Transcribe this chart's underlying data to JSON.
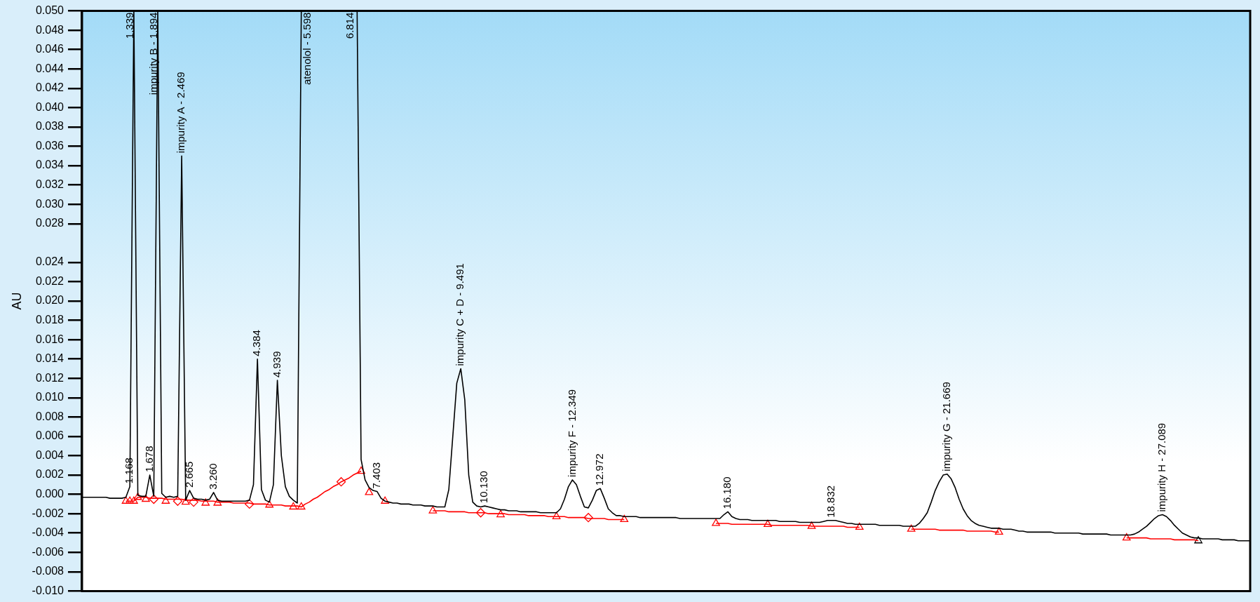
{
  "chart_data": {
    "type": "line",
    "ylabel": "AU",
    "ylim": [
      -0.01,
      0.05
    ],
    "tick_labels": "y",
    "yticks": [
      {
        "value": -0.01,
        "label": "-0.010"
      },
      {
        "value": -0.008,
        "label": "-0.008"
      },
      {
        "value": -0.006,
        "label": "-0.006"
      },
      {
        "value": -0.004,
        "label": "-0.004"
      },
      {
        "value": -0.002,
        "label": "-0.002"
      },
      {
        "value": 0,
        "label": "0.000"
      },
      {
        "value": 0.002,
        "label": "0.002"
      },
      {
        "value": 0.004,
        "label": "0.004"
      },
      {
        "value": 0.006,
        "label": "0.006"
      },
      {
        "value": 0.008,
        "label": "0.008"
      },
      {
        "value": 0.01,
        "label": "0.010"
      },
      {
        "value": 0.012,
        "label": "0.012"
      },
      {
        "value": 0.014,
        "label": "0.014"
      },
      {
        "value": 0.016,
        "label": "0.016"
      },
      {
        "value": 0.018,
        "label": "0.018"
      },
      {
        "value": 0.02,
        "label": "0.020"
      },
      {
        "value": 0.022,
        "label": "0.022"
      },
      {
        "value": 0.024,
        "label": "0.024"
      },
      {
        "value": 0.028,
        "label": "0.028"
      },
      {
        "value": 0.03,
        "label": "0.030"
      },
      {
        "value": 0.032,
        "label": "0.032"
      },
      {
        "value": 0.034,
        "label": "0.034"
      },
      {
        "value": 0.036,
        "label": "0.036"
      },
      {
        "value": 0.038,
        "label": "0.038"
      },
      {
        "value": 0.04,
        "label": "0.040"
      },
      {
        "value": 0.042,
        "label": "0.042"
      },
      {
        "value": 0.044,
        "label": "0.044"
      },
      {
        "value": 0.046,
        "label": "0.046"
      },
      {
        "value": 0.048,
        "label": "0.048"
      },
      {
        "value": 0.05,
        "label": "0.050"
      }
    ],
    "categories": [
      null,
      null,
      null,
      null,
      null,
      null,
      null,
      null,
      null,
      null,
      null,
      null,
      null,
      null,
      null,
      null,
      null,
      null,
      null,
      null,
      null,
      null,
      null,
      null,
      null,
      null,
      null,
      null,
      null,
      null,
      null,
      null,
      null,
      null,
      null,
      null,
      null,
      null,
      null,
      null,
      null,
      null,
      null,
      null,
      null,
      null,
      null,
      null,
      null,
      null,
      null,
      null,
      null,
      null,
      null,
      null,
      null,
      null,
      null,
      null,
      null,
      null,
      null,
      null,
      null,
      null,
      null,
      null,
      null,
      null,
      null,
      null,
      null,
      null,
      null,
      null,
      null,
      null,
      null,
      null,
      null,
      null,
      null,
      null,
      null,
      null,
      null,
      null,
      null,
      null,
      null,
      null,
      null,
      null,
      null,
      null,
      null,
      null,
      null,
      null,
      null,
      null,
      null,
      null,
      null,
      null,
      null,
      null,
      null,
      null,
      null,
      null,
      null,
      null,
      null,
      null,
      null,
      null,
      null,
      null,
      null,
      null,
      null,
      null,
      null,
      null,
      null,
      null,
      null,
      null,
      null,
      null,
      null,
      null,
      null,
      null,
      null,
      null,
      null,
      null,
      null,
      null,
      null,
      null,
      null,
      null,
      null,
      null,
      null,
      null,
      null,
      null,
      null,
      null,
      null,
      null,
      null,
      null,
      null,
      null,
      null,
      null,
      null,
      null,
      null,
      null,
      null,
      null,
      null,
      null,
      null,
      null,
      null,
      null,
      null,
      null,
      null,
      null,
      null,
      null,
      null,
      null,
      null,
      null,
      null,
      null,
      null,
      null,
      null,
      null,
      null,
      null,
      null,
      null,
      null,
      null,
      null,
      null,
      null,
      null,
      null,
      null,
      null,
      null,
      null,
      null,
      null,
      null,
      null,
      null,
      null,
      null,
      null,
      null,
      null,
      null,
      null,
      null,
      null,
      null,
      null,
      null,
      null,
      null,
      null,
      null,
      null,
      null,
      null,
      null,
      null,
      null,
      null,
      null,
      null,
      null,
      null,
      null,
      null,
      null,
      null,
      null,
      null,
      null,
      null,
      null,
      null,
      null,
      null,
      null,
      null,
      null,
      null,
      null,
      null,
      null,
      null,
      null,
      null,
      null,
      null,
      null,
      null,
      null,
      null,
      null,
      null,
      null,
      null,
      null,
      null,
      null,
      null,
      null,
      null,
      null,
      null,
      null,
      null,
      null,
      null,
      null,
      null,
      null,
      null,
      null,
      null,
      null,
      null,
      null,
      null,
      null,
      null,
      null
    ],
    "series": [
      {
        "type": "line",
        "color": "#000000",
        "marker": "none",
        "values": [
          -0.0003,
          -0.0003,
          -0.0003,
          -0.0003,
          -0.0003,
          -0.0003,
          -0.0003,
          -0.0004,
          -0.0004,
          -0.0004,
          -0.0004,
          -0.0003,
          0.0008,
          0.05,
          -0.0001,
          -0.0002,
          -0.0002,
          0.002,
          -0.0002,
          0.05,
          0.0001,
          -0.0003,
          -0.0002,
          -0.0003,
          -0.0002,
          0.035,
          -0.0006,
          0.0004,
          -0.0004,
          -0.0005,
          -0.0005,
          -0.0006,
          -0.0005,
          0.0002,
          -0.0006,
          -0.0007,
          -0.0007,
          -0.0007,
          -0.0007,
          -0.0007,
          -0.0007,
          -0.0007,
          -0.0006,
          0.001,
          0.014,
          0.0005,
          -0.0006,
          -0.0008,
          0.001,
          0.0118,
          0.004,
          0.0008,
          -0.0002,
          -0.0006,
          -0.0009,
          0.05,
          0.05,
          0.05,
          0.05,
          0.05,
          0.05,
          0.05,
          0.05,
          0.05,
          0.05,
          0.05,
          0.05,
          0.05,
          0.05,
          0.05,
          0.0036,
          0.0015,
          0.0007,
          0.0004,
          0.0003,
          -0.0004,
          -0.0007,
          -0.0008,
          -0.0009,
          -0.0009,
          -0.001,
          -0.001,
          -0.001,
          -0.0011,
          -0.0011,
          -0.0011,
          -0.0012,
          -0.0012,
          -0.0012,
          -0.0013,
          -0.0013,
          -0.0013,
          0.0005,
          0.006,
          0.0115,
          0.013,
          0.0098,
          0.002,
          -0.0008,
          -0.0012,
          -0.0013,
          -0.0012,
          -0.0013,
          -0.0014,
          -0.0015,
          -0.0016,
          -0.0016,
          -0.0017,
          -0.0017,
          -0.0017,
          -0.0018,
          -0.0018,
          -0.0018,
          -0.0018,
          -0.0018,
          -0.0019,
          -0.0019,
          -0.0019,
          -0.0019,
          -0.0019,
          -0.0015,
          -0.0005,
          0.0008,
          0.0015,
          0.001,
          -0.0002,
          -0.0013,
          -0.0014,
          -0.0006,
          0.0004,
          0.0006,
          -0.0004,
          -0.0015,
          -0.0019,
          -0.0022,
          -0.0022,
          -0.0023,
          -0.0023,
          -0.0023,
          -0.0023,
          -0.0024,
          -0.0024,
          -0.0024,
          -0.0024,
          -0.0024,
          -0.0024,
          -0.0024,
          -0.0024,
          -0.0024,
          -0.0024,
          -0.0025,
          -0.0025,
          -0.0025,
          -0.0025,
          -0.0025,
          -0.0025,
          -0.0025,
          -0.0025,
          -0.0025,
          -0.0025,
          -0.0025,
          -0.0021,
          -0.0018,
          -0.0023,
          -0.0025,
          -0.0026,
          -0.0026,
          -0.0026,
          -0.0027,
          -0.0027,
          -0.0027,
          -0.0027,
          -0.0027,
          -0.0027,
          -0.0027,
          -0.0028,
          -0.0028,
          -0.0028,
          -0.0028,
          -0.0028,
          -0.0029,
          -0.0029,
          -0.0029,
          -0.0029,
          -0.0029,
          -0.0029,
          -0.0028,
          -0.0027,
          -0.0027,
          -0.0027,
          -0.0028,
          -0.0029,
          -0.003,
          -0.003,
          -0.0031,
          -0.0031,
          -0.0031,
          -0.0031,
          -0.0031,
          -0.0031,
          -0.0032,
          -0.0032,
          -0.0032,
          -0.0032,
          -0.0032,
          -0.0032,
          -0.0033,
          -0.0033,
          -0.0033,
          -0.0033,
          -0.003,
          -0.0025,
          -0.0019,
          -0.0008,
          0.0004,
          0.0013,
          0.002,
          0.0021,
          0.0016,
          0.0007,
          -0.0005,
          -0.0015,
          -0.0022,
          -0.0027,
          -0.003,
          -0.0032,
          -0.0033,
          -0.0034,
          -0.0035,
          -0.0035,
          -0.0035,
          -0.0036,
          -0.0036,
          -0.0036,
          -0.0037,
          -0.0038,
          -0.0038,
          -0.0039,
          -0.0039,
          -0.0039,
          -0.0039,
          -0.0039,
          -0.0039,
          -0.0039,
          -0.004,
          -0.004,
          -0.004,
          -0.004,
          -0.004,
          -0.004,
          -0.004,
          -0.0041,
          -0.0041,
          -0.0041,
          -0.0041,
          -0.0041,
          -0.0041,
          -0.0041,
          -0.0042,
          -0.0042,
          -0.0042,
          -0.0042,
          -0.0042,
          -0.0042,
          -0.0041,
          -0.0039,
          -0.0036,
          -0.0033,
          -0.0029,
          -0.0025,
          -0.0022,
          -0.0021,
          -0.0023,
          -0.0027,
          -0.0032,
          -0.0036,
          -0.004,
          -0.0042,
          -0.0044,
          -0.0045,
          -0.0045,
          -0.0046,
          -0.0046,
          -0.0046,
          -0.0046,
          -0.0046,
          -0.0047,
          -0.0047,
          -0.0047,
          -0.0047,
          -0.0048,
          -0.0048,
          -0.0048,
          -0.0048
        ],
        "line_style": "solid"
      },
      {
        "type": "line",
        "color": "#ff0000",
        "marker": "none",
        "values": [
          null,
          null,
          null,
          null,
          null,
          null,
          null,
          null,
          null,
          null,
          null,
          -0.0007,
          -0.0007,
          -0.0007,
          -0.0003,
          -0.0003,
          -0.0003,
          -0.0004,
          -0.0004,
          -0.0004,
          -0.0004,
          -0.0005,
          -0.0005,
          -0.0005,
          -0.0005,
          -0.0005,
          -0.0006,
          -0.0006,
          -0.0006,
          -0.0006,
          -0.0007,
          -0.0007,
          -0.0007,
          -0.0007,
          -0.0008,
          -0.0008,
          -0.0008,
          -0.0008,
          -0.0009,
          -0.0009,
          -0.0009,
          -0.0009,
          -0.0009,
          -0.001,
          -0.001,
          -0.001,
          -0.001,
          -0.0011,
          -0.0011,
          -0.0011,
          -0.0011,
          -0.0012,
          -0.0012,
          -0.0012,
          -0.0012,
          -0.0013,
          -0.001,
          -0.0008,
          -0.0005,
          -0.0003,
          0,
          0.0003,
          0.0005,
          0.0008,
          0.001,
          0.0013,
          0.0015,
          0.0017,
          0.002,
          0.0022,
          0.0024,
          null,
          null,
          null,
          null,
          null,
          null,
          null,
          null,
          null,
          null,
          null,
          null,
          null,
          null,
          null,
          null,
          null,
          -0.0017,
          -0.0017,
          -0.0017,
          -0.0017,
          -0.0018,
          -0.0018,
          -0.0018,
          -0.0018,
          -0.0018,
          -0.0019,
          -0.0019,
          -0.0019,
          -0.0019,
          -0.0019,
          -0.002,
          -0.002,
          -0.002,
          -0.002,
          -0.002,
          -0.0021,
          -0.0021,
          -0.0021,
          -0.0021,
          -0.0021,
          -0.0022,
          -0.0022,
          -0.0022,
          -0.0022,
          -0.0022,
          -0.0023,
          -0.0023,
          -0.0023,
          -0.0023,
          -0.0023,
          -0.0024,
          -0.0024,
          -0.0024,
          -0.0024,
          -0.0024,
          -0.0025,
          -0.0025,
          -0.0025,
          -0.0025,
          -0.0025,
          -0.0026,
          -0.0026,
          -0.0026,
          -0.0026,
          -0.0026,
          null,
          null,
          null,
          null,
          null,
          null,
          null,
          null,
          null,
          null,
          null,
          null,
          null,
          null,
          null,
          null,
          null,
          null,
          null,
          null,
          null,
          null,
          -0.003,
          -0.003,
          -0.003,
          -0.003,
          -0.0031,
          -0.0031,
          -0.0031,
          -0.0031,
          -0.0031,
          -0.0031,
          -0.0031,
          -0.0031,
          -0.0031,
          -0.0031,
          -0.0032,
          -0.0032,
          -0.0032,
          -0.0032,
          -0.0032,
          -0.0032,
          -0.0032,
          -0.0032,
          -0.0032,
          -0.0032,
          -0.0033,
          -0.0033,
          -0.0033,
          -0.0033,
          -0.0033,
          -0.0033,
          -0.0033,
          -0.0033,
          -0.0033,
          -0.0034,
          -0.0034,
          -0.0034,
          -0.0034,
          null,
          null,
          null,
          null,
          null,
          null,
          null,
          null,
          null,
          null,
          null,
          null,
          -0.0036,
          -0.0036,
          -0.0036,
          -0.0036,
          -0.0036,
          -0.0036,
          -0.0036,
          -0.0037,
          -0.0037,
          -0.0037,
          -0.0037,
          -0.0037,
          -0.0037,
          -0.0037,
          -0.0038,
          -0.0038,
          -0.0038,
          -0.0038,
          -0.0038,
          -0.0038,
          -0.0038,
          -0.0039,
          -0.0039,
          null,
          null,
          null,
          null,
          null,
          null,
          null,
          null,
          null,
          null,
          null,
          null,
          null,
          null,
          null,
          null,
          null,
          null,
          null,
          null,
          null,
          null,
          null,
          null,
          null,
          null,
          null,
          null,
          null,
          null,
          null,
          -0.0045,
          -0.0045,
          -0.0045,
          -0.0045,
          -0.0045,
          -0.0045,
          -0.0046,
          -0.0046,
          -0.0046,
          -0.0046,
          -0.0046,
          -0.0046,
          -0.0047,
          -0.0047,
          -0.0047,
          -0.0047,
          -0.0047,
          -0.0047,
          -0.0048,
          null,
          null,
          null,
          null,
          null,
          null,
          null,
          null,
          null,
          null,
          null,
          null,
          null
        ]
      },
      {
        "type": "scatter",
        "color": "#ff0000",
        "marker": "triangle",
        "values": [
          null,
          null,
          null,
          null,
          null,
          null,
          null,
          null,
          null,
          null,
          null,
          -0.0007,
          -0.0007,
          -0.0007,
          -0.0003,
          null,
          -0.0005,
          null,
          null,
          null,
          null,
          -0.0007,
          null,
          null,
          null,
          null,
          -0.0008,
          null,
          null,
          null,
          null,
          -0.0009,
          null,
          null,
          -0.0009,
          null,
          null,
          null,
          null,
          null,
          null,
          null,
          null,
          null,
          null,
          null,
          null,
          -0.0011,
          null,
          null,
          null,
          null,
          null,
          -0.0013,
          null,
          -0.0013,
          null,
          null,
          null,
          null,
          null,
          null,
          null,
          null,
          null,
          null,
          null,
          null,
          null,
          null,
          0.0024,
          null,
          0.0002,
          null,
          null,
          null,
          -0.0007,
          null,
          null,
          null,
          null,
          null,
          null,
          null,
          null,
          null,
          null,
          null,
          -0.0017,
          null,
          null,
          null,
          null,
          null,
          null,
          null,
          null,
          null,
          null,
          null,
          null,
          null,
          null,
          null,
          null,
          -0.0021,
          null,
          null,
          null,
          null,
          null,
          null,
          null,
          null,
          null,
          null,
          null,
          null,
          null,
          -0.0023,
          null,
          null,
          null,
          null,
          null,
          null,
          null,
          null,
          null,
          null,
          null,
          null,
          null,
          null,
          null,
          null,
          -0.0026,
          null,
          null,
          null,
          null,
          null,
          null,
          null,
          null,
          null,
          null,
          null,
          null,
          null,
          null,
          null,
          null,
          null,
          null,
          null,
          null,
          null,
          null,
          -0.003,
          null,
          null,
          null,
          null,
          null,
          null,
          null,
          null,
          null,
          null,
          null,
          null,
          -0.0031,
          null,
          null,
          null,
          null,
          null,
          null,
          null,
          null,
          null,
          null,
          -0.0033,
          null,
          null,
          null,
          null,
          null,
          null,
          null,
          null,
          null,
          null,
          null,
          -0.0034,
          null,
          null,
          null,
          null,
          null,
          null,
          null,
          null,
          null,
          null,
          null,
          null,
          -0.0036,
          null,
          null,
          null,
          null,
          null,
          null,
          null,
          null,
          null,
          null,
          null,
          null,
          null,
          null,
          null,
          null,
          null,
          null,
          null,
          null,
          null,
          -0.0039,
          null,
          null,
          null,
          null,
          null,
          null,
          null,
          null,
          null,
          null,
          null,
          null,
          null,
          null,
          null,
          null,
          null,
          null,
          null,
          null,
          null,
          null,
          null,
          null,
          null,
          null,
          null,
          null,
          null,
          null,
          null,
          -0.0045,
          null,
          null,
          null,
          null,
          null,
          null,
          null,
          null,
          null,
          null,
          null,
          null,
          null,
          null,
          null,
          null,
          null,
          null,
          null,
          null,
          null,
          null,
          null,
          null,
          null,
          null,
          null,
          null,
          null,
          null,
          null
        ]
      },
      {
        "type": "scatter",
        "color": "#ff0000",
        "marker": "diamond",
        "values": [
          null,
          null,
          null,
          null,
          null,
          null,
          null,
          null,
          null,
          null,
          null,
          null,
          null,
          null,
          null,
          null,
          null,
          null,
          -0.0005,
          null,
          null,
          null,
          null,
          null,
          -0.0007,
          null,
          null,
          null,
          -0.0008,
          null,
          null,
          null,
          null,
          null,
          null,
          null,
          null,
          null,
          null,
          null,
          null,
          null,
          -0.001,
          null,
          null,
          null,
          null,
          null,
          null,
          null,
          null,
          null,
          null,
          null,
          null,
          null,
          null,
          null,
          null,
          null,
          null,
          null,
          null,
          null,
          null,
          0.0013,
          null,
          null,
          null,
          null,
          null,
          null,
          null,
          null,
          null,
          null,
          null,
          null,
          null,
          null,
          null,
          null,
          null,
          null,
          null,
          null,
          null,
          null,
          null,
          null,
          null,
          null,
          null,
          null,
          null,
          null,
          null,
          null,
          null,
          null,
          -0.0019,
          null,
          null,
          null,
          null,
          null,
          null,
          null,
          null,
          null,
          null,
          null,
          null,
          null,
          null,
          null,
          null,
          null,
          null,
          null,
          null,
          null,
          null,
          null,
          null,
          null,
          null,
          -0.0024,
          null,
          null,
          null,
          null,
          null,
          null,
          null,
          null,
          null,
          null,
          null,
          null,
          null,
          null,
          null,
          null,
          null,
          null,
          null,
          null,
          null,
          null,
          null,
          null,
          null,
          null,
          null,
          null,
          null,
          null,
          null,
          null,
          null,
          null,
          null,
          null,
          null,
          null,
          null,
          null,
          null,
          null,
          null,
          null,
          null,
          null,
          null,
          null,
          null,
          null,
          null,
          null,
          null,
          null,
          null,
          null,
          null,
          null,
          null,
          null,
          null,
          null,
          null,
          null,
          null,
          null,
          null,
          null,
          null,
          null,
          null,
          null,
          null,
          null,
          null,
          null,
          null,
          null,
          null,
          null,
          null,
          null,
          null,
          null,
          null,
          null,
          null,
          null,
          null,
          null,
          null,
          null,
          null,
          null,
          null,
          null,
          null,
          null,
          null,
          null,
          null,
          null,
          null,
          null,
          null,
          null,
          null,
          null,
          null,
          null,
          null,
          null,
          null,
          null,
          null,
          null,
          null,
          null,
          null,
          null,
          null,
          null,
          null,
          null,
          null,
          null,
          null,
          null,
          null,
          null,
          null,
          null,
          null,
          null,
          null,
          null,
          null,
          null,
          null,
          null,
          null,
          null,
          null,
          null,
          null,
          null,
          null,
          null,
          null,
          null,
          null,
          null,
          null,
          null,
          null,
          null,
          null,
          null,
          null,
          null,
          null,
          null,
          null,
          null,
          null,
          null
        ]
      },
      {
        "type": "scatter",
        "color": "#000000",
        "marker": "triangle",
        "values": [
          null,
          null,
          null,
          null,
          null,
          null,
          null,
          null,
          null,
          null,
          null,
          null,
          null,
          null,
          null,
          null,
          null,
          null,
          null,
          null,
          null,
          null,
          null,
          null,
          null,
          null,
          null,
          null,
          null,
          null,
          null,
          null,
          null,
          null,
          null,
          null,
          null,
          null,
          null,
          null,
          null,
          null,
          null,
          null,
          null,
          null,
          null,
          null,
          null,
          null,
          null,
          null,
          null,
          null,
          null,
          null,
          null,
          null,
          null,
          null,
          null,
          null,
          null,
          null,
          null,
          null,
          null,
          null,
          null,
          null,
          null,
          null,
          null,
          null,
          null,
          null,
          null,
          null,
          null,
          null,
          null,
          null,
          null,
          null,
          null,
          null,
          null,
          null,
          null,
          null,
          null,
          null,
          null,
          null,
          null,
          null,
          null,
          null,
          null,
          null,
          null,
          null,
          null,
          null,
          null,
          null,
          null,
          null,
          null,
          null,
          null,
          null,
          null,
          null,
          null,
          null,
          null,
          null,
          null,
          null,
          null,
          null,
          null,
          null,
          null,
          null,
          null,
          null,
          null,
          null,
          null,
          null,
          null,
          null,
          null,
          null,
          null,
          null,
          null,
          null,
          null,
          null,
          null,
          null,
          null,
          null,
          null,
          null,
          null,
          null,
          null,
          null,
          null,
          null,
          null,
          null,
          null,
          null,
          null,
          null,
          null,
          null,
          null,
          null,
          null,
          null,
          null,
          null,
          null,
          null,
          null,
          null,
          null,
          null,
          null,
          null,
          null,
          null,
          null,
          null,
          null,
          null,
          null,
          null,
          null,
          null,
          null,
          null,
          null,
          null,
          null,
          null,
          null,
          null,
          null,
          null,
          null,
          null,
          null,
          null,
          null,
          null,
          null,
          null,
          null,
          null,
          null,
          null,
          null,
          null,
          null,
          null,
          null,
          null,
          null,
          null,
          null,
          null,
          null,
          null,
          null,
          null,
          null,
          null,
          null,
          null,
          null,
          null,
          null,
          null,
          null,
          null,
          null,
          null,
          null,
          null,
          null,
          null,
          null,
          null,
          null,
          null,
          null,
          null,
          null,
          null,
          null,
          null,
          null,
          null,
          null,
          null,
          null,
          null,
          null,
          null,
          null,
          null,
          null,
          null,
          null,
          null,
          null,
          null,
          null,
          null,
          null,
          null,
          null,
          null,
          null,
          null,
          null,
          null,
          null,
          null,
          null,
          null,
          null,
          null,
          -0.0048,
          null,
          null,
          null,
          null,
          null,
          null,
          null,
          null,
          null,
          null,
          null,
          null,
          null
        ]
      }
    ],
    "annotations": [
      {
        "text": "1.168",
        "y": 0.0008
      },
      "1.339",
      {
        "text": "1.678",
        "y": 0.002
      },
      "impurity B - 1.894",
      {
        "text": "impurity A - 2.469",
        "y": 0.035
      },
      {
        "text": "2.665",
        "y": 0.0004
      },
      {
        "text": "3.260",
        "y": 0.0002
      },
      {
        "text": "4.384",
        "y": 0.014
      },
      {
        "text": "4.939",
        "y": 0.0118
      },
      {
        "text": "atenolol - 5.598",
        "y": 0.05
      },
      {
        "text": "6.814",
        "y": 0.05
      },
      {
        "text": "7.403",
        "y": 0.0003
      },
      {
        "text": "impurity C + D - 9.491",
        "y": 0.013
      },
      {
        "text": "10.130",
        "y": -0.0012
      },
      {
        "text": "impurity F - 12.349",
        "y": 0.0015
      },
      {
        "text": "12.972",
        "y": 0.0006
      },
      {
        "text": "16.180",
        "y": -0.0018
      },
      {
        "text": "18.832",
        "y": -0.0027
      },
      {
        "text": "impurity G - 21.669",
        "y": 0.0021
      },
      {
        "text": "impurity H - 27.089",
        "y": -0.0021
      }
    ]
  }
}
